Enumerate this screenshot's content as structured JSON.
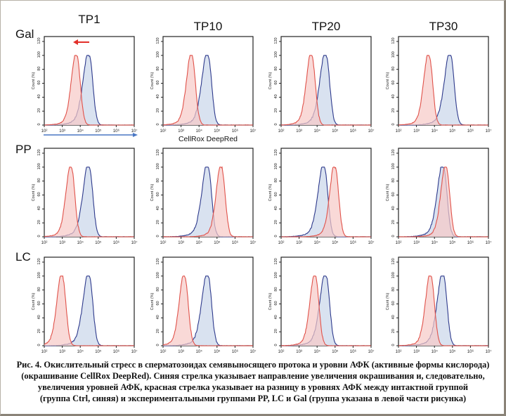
{
  "chart_data": {
    "type": "area",
    "subtype": "flow-cytometry-histogram-grid",
    "columns": [
      "TP1",
      "TP10",
      "TP20",
      "TP30"
    ],
    "rows": [
      "Gal",
      "PP",
      "LC"
    ],
    "xlabel": "CellRox DeepRed",
    "ylabel": "Count (%)",
    "x_scale": "log",
    "xlim": [
      100,
      10000000
    ],
    "x_ticks": [
      "10²",
      "10³",
      "10⁴",
      "10⁵",
      "10⁶",
      "10⁷"
    ],
    "ylim": [
      0,
      120
    ],
    "y_ticks": [
      "0",
      "20",
      "40",
      "60",
      "80",
      "100",
      "120"
    ],
    "series_legend": [
      {
        "name": "Ctrl",
        "color": "#2e3a8c",
        "fill": "#c9d6ea"
      },
      {
        "name": "experimental",
        "color": "#e0524a",
        "fill": "#f6c9c6"
      }
    ],
    "annotations": [
      {
        "type": "arrow",
        "panel": "Gal-TP1",
        "color": "#e2302a",
        "direction": "left",
        "meaning": "difference in ROS levels"
      },
      {
        "type": "arrow",
        "panel": "below Gal row",
        "color": "#4a77c4",
        "direction": "right",
        "meaning": "increase of staining"
      }
    ],
    "panels": [
      {
        "row": "Gal",
        "col": "TP1",
        "ctrl_peak_log10": 4.5,
        "exp_peak_log10": 3.8,
        "ctrl_peak_pct": 100,
        "exp_peak_pct": 100
      },
      {
        "row": "Gal",
        "col": "TP10",
        "ctrl_peak_log10": 4.5,
        "exp_peak_log10": 3.6,
        "ctrl_peak_pct": 100,
        "exp_peak_pct": 100
      },
      {
        "row": "Gal",
        "col": "TP20",
        "ctrl_peak_log10": 4.5,
        "exp_peak_log10": 3.7,
        "ctrl_peak_pct": 100,
        "exp_peak_pct": 100
      },
      {
        "row": "Gal",
        "col": "TP30",
        "ctrl_peak_log10": 4.9,
        "exp_peak_log10": 3.7,
        "ctrl_peak_pct": 100,
        "exp_peak_pct": 100
      },
      {
        "row": "PP",
        "col": "TP1",
        "ctrl_peak_log10": 4.5,
        "exp_peak_log10": 3.5,
        "ctrl_peak_pct": 100,
        "exp_peak_pct": 100
      },
      {
        "row": "PP",
        "col": "TP10",
        "ctrl_peak_log10": 4.5,
        "exp_peak_log10": 5.25,
        "ctrl_peak_pct": 100,
        "exp_peak_pct": 100
      },
      {
        "row": "PP",
        "col": "TP20",
        "ctrl_peak_log10": 4.4,
        "exp_peak_log10": 5.0,
        "ctrl_peak_pct": 100,
        "exp_peak_pct": 100
      },
      {
        "row": "PP",
        "col": "TP30",
        "ctrl_peak_log10": 4.5,
        "exp_peak_log10": 4.65,
        "ctrl_peak_pct": 100,
        "exp_peak_pct": 100
      },
      {
        "row": "LC",
        "col": "TP1",
        "ctrl_peak_log10": 4.5,
        "exp_peak_log10": 3.0,
        "ctrl_peak_pct": 100,
        "exp_peak_pct": 100
      },
      {
        "row": "LC",
        "col": "TP10",
        "ctrl_peak_log10": 4.5,
        "exp_peak_log10": 3.2,
        "ctrl_peak_pct": 100,
        "exp_peak_pct": 100
      },
      {
        "row": "LC",
        "col": "TP20",
        "ctrl_peak_log10": 4.5,
        "exp_peak_log10": 3.9,
        "ctrl_peak_pct": 100,
        "exp_peak_pct": 100
      },
      {
        "row": "LC",
        "col": "TP30",
        "ctrl_peak_log10": 4.5,
        "exp_peak_log10": 3.8,
        "ctrl_peak_pct": 100,
        "exp_peak_pct": 100
      }
    ]
  },
  "caption": {
    "lines": [
      "Рис. 4. Окислительный стресс в сперматозоидах семявыносящего протока и уровни АФК (активные формы кислорода)",
      "(окрашивание CellRox DeepRed). Синяя стрелка указывает направление увеличения окрашивания и, следовательно,",
      "увеличения уровней АФК, красная стрелка указывает на разницу в уровнях АФК между интактной группой",
      "(группа Ctrl, синяя) и экспериментальными группами PP, LC и Gal (группа указана в левой части рисунка)"
    ]
  }
}
